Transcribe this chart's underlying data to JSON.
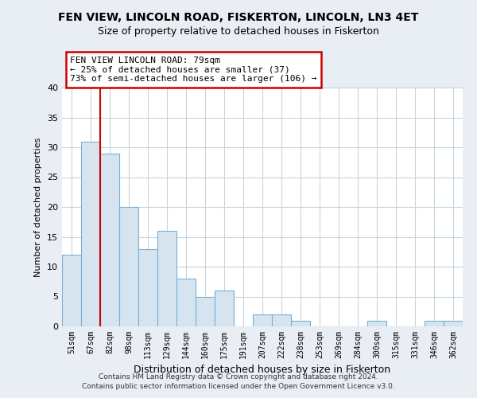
{
  "title1": "FEN VIEW, LINCOLN ROAD, FISKERTON, LINCOLN, LN3 4ET",
  "title2": "Size of property relative to detached houses in Fiskerton",
  "xlabel": "Distribution of detached houses by size in Fiskerton",
  "ylabel": "Number of detached properties",
  "bar_labels": [
    "51sqm",
    "67sqm",
    "82sqm",
    "98sqm",
    "113sqm",
    "129sqm",
    "144sqm",
    "160sqm",
    "175sqm",
    "191sqm",
    "207sqm",
    "222sqm",
    "238sqm",
    "253sqm",
    "269sqm",
    "284sqm",
    "300sqm",
    "315sqm",
    "331sqm",
    "346sqm",
    "362sqm"
  ],
  "bar_values": [
    12,
    31,
    29,
    20,
    13,
    16,
    8,
    5,
    6,
    0,
    2,
    2,
    1,
    0,
    0,
    0,
    1,
    0,
    0,
    1,
    1
  ],
  "bar_color": "#d6e4f0",
  "bar_edge_color": "#7aafd4",
  "annotation_line1": "FEN VIEW LINCOLN ROAD: 79sqm",
  "annotation_line2": "← 25% of detached houses are smaller (37)",
  "annotation_line3": "73% of semi-detached houses are larger (106) →",
  "annotation_box_color": "white",
  "annotation_box_edge_color": "#cc0000",
  "ylim": [
    0,
    40
  ],
  "yticks": [
    0,
    5,
    10,
    15,
    20,
    25,
    30,
    35,
    40
  ],
  "footer1": "Contains HM Land Registry data © Crown copyright and database right 2024.",
  "footer2": "Contains public sector information licensed under the Open Government Licence v3.0.",
  "bg_color": "#e8eef4",
  "plot_bg_color": "white",
  "grid_color": "#c8d4de",
  "red_line_x": 1.5
}
